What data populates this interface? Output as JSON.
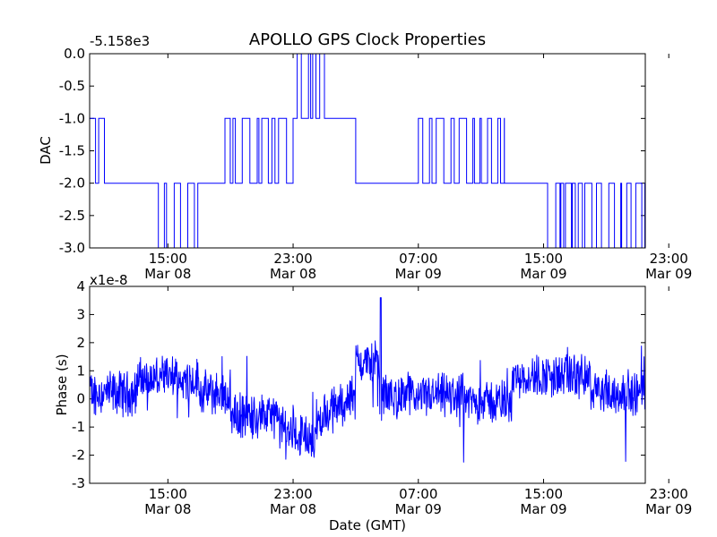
{
  "title": "APOLLO GPS Clock Properties",
  "chart_data": [
    {
      "type": "line",
      "name": "dac",
      "ylabel": "DAC",
      "offset_label": "-5.158e3",
      "ylim": [
        -3.0,
        0.0
      ],
      "xlim_hours": [
        10.0,
        45.5
      ],
      "yticks": [
        "0.0",
        "-0.5",
        "-1.0",
        "-1.5",
        "-2.0",
        "-2.5",
        "-3.0"
      ],
      "xticks": [
        {
          "time": "15:00",
          "date": "Mar 08"
        },
        {
          "time": "23:00",
          "date": "Mar 08"
        },
        {
          "time": "07:00",
          "date": "Mar 09"
        },
        {
          "time": "15:00",
          "date": "Mar 09"
        },
        {
          "time": "23:00",
          "date": "Mar 09"
        }
      ],
      "color": "#0000ff",
      "grid": false
    },
    {
      "type": "line",
      "name": "phase",
      "ylabel": "Phase (s)",
      "offset_label": "x1e-8",
      "xlabel": "Date (GMT)",
      "ylim": [
        -3,
        4
      ],
      "xlim_hours": [
        10.0,
        45.5
      ],
      "yticks": [
        "4",
        "3",
        "2",
        "1",
        "0",
        "-1",
        "-2",
        "-3"
      ],
      "xticks": [
        {
          "time": "15:00",
          "date": "Mar 08"
        },
        {
          "time": "23:00",
          "date": "Mar 08"
        },
        {
          "time": "07:00",
          "date": "Mar 09"
        },
        {
          "time": "15:00",
          "date": "Mar 09"
        },
        {
          "time": "23:00",
          "date": "Mar 09"
        }
      ],
      "color": "#0000ff",
      "grid": false
    }
  ]
}
